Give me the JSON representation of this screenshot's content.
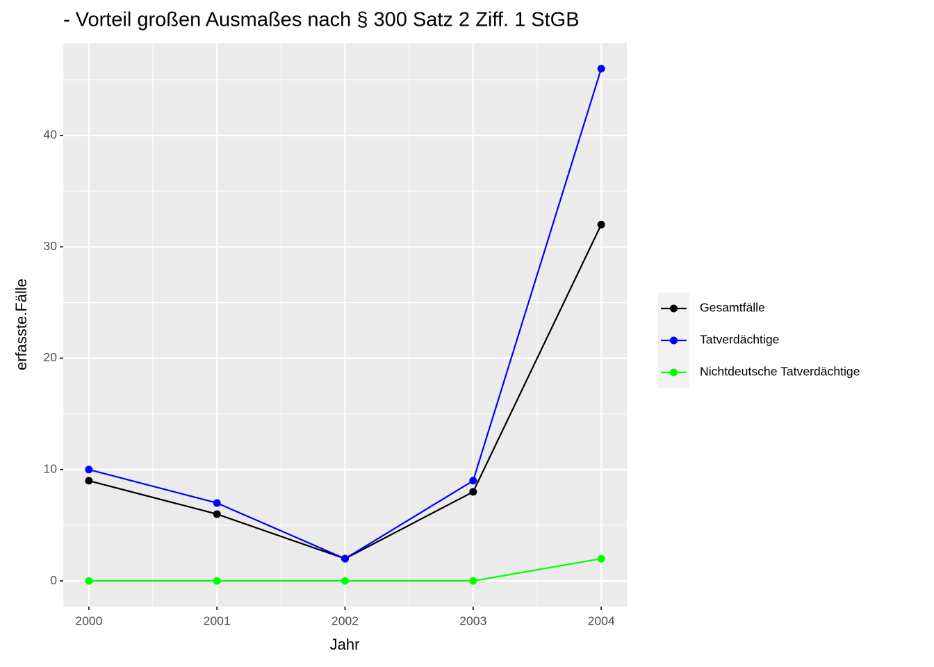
{
  "chart_data": {
    "type": "line",
    "title": "- Vorteil großen Ausmaßes nach § 300 Satz 2 Ziff. 1 StGB",
    "x_label": "Jahr",
    "y_label": "erfasste.Fälle",
    "x": [
      2000,
      2001,
      2002,
      2003,
      2004
    ],
    "series": [
      {
        "name": "Gesamtfälle",
        "color": "#000000",
        "values": [
          9,
          6,
          2,
          8,
          32
        ]
      },
      {
        "name": "Tatverdächtige",
        "color": "#0000ff",
        "values": [
          10,
          7,
          2,
          9,
          46
        ]
      },
      {
        "name": "Nichtdeutsche Tatverdächtige",
        "color": "#00ff00",
        "values": [
          0,
          0,
          0,
          0,
          2
        ]
      }
    ],
    "xlim": [
      1999.8,
      2004.2
    ],
    "xticks": [
      2000,
      2001,
      2002,
      2003,
      2004
    ],
    "ylim": [
      -2.3,
      48.3
    ],
    "yticks": [
      0,
      10,
      20,
      30,
      40
    ],
    "grid": true,
    "legend": "right"
  }
}
